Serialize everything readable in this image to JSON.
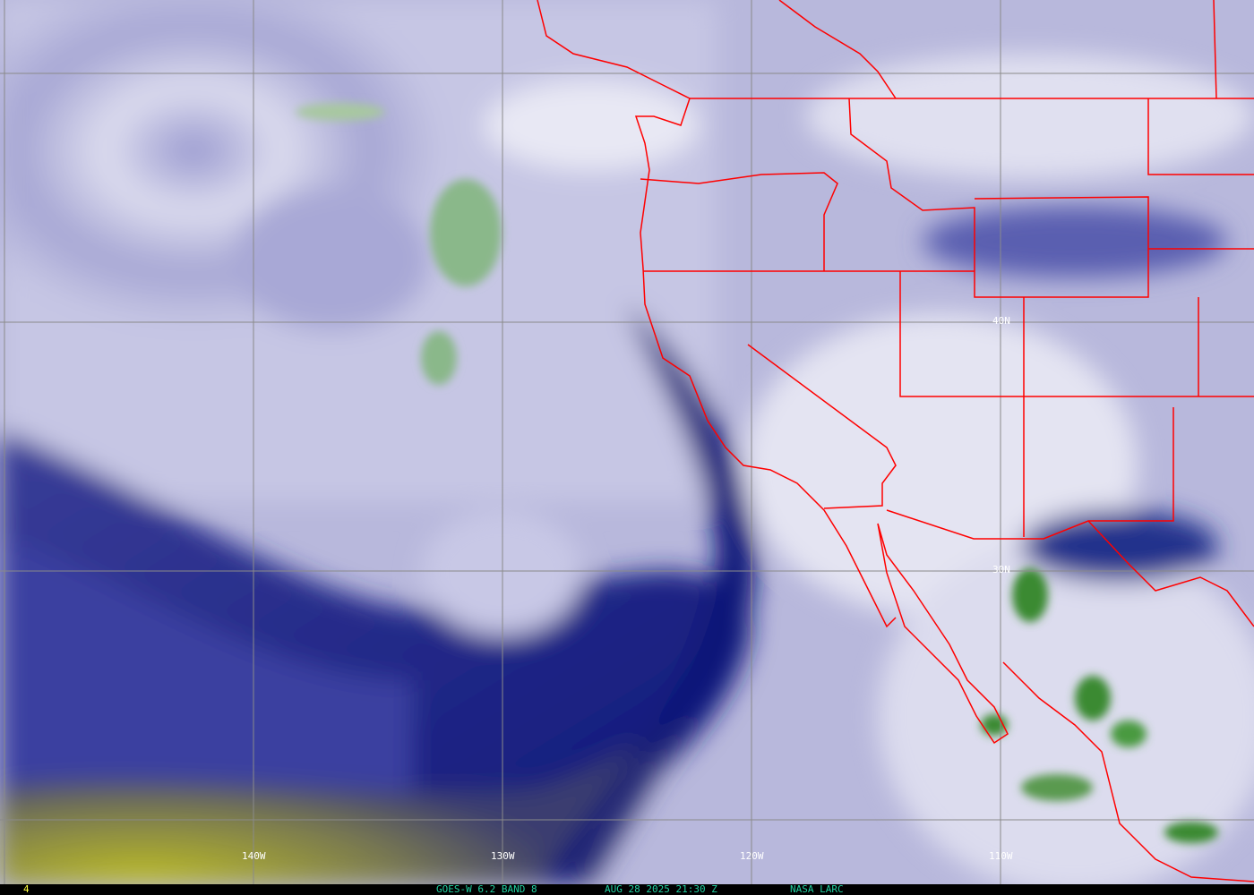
{
  "image": {
    "satellite": "GOES-W",
    "product_label": "GOES-W 6.2 BAND 8",
    "datetime_label": "AUG 28 2025 21:30 Z",
    "credit_label": "NASA LARC",
    "frame_number": "4"
  },
  "grid": {
    "longitude_labels": [
      "140W",
      "130W",
      "120W",
      "110W"
    ],
    "latitude_labels": [
      "40N",
      "30N"
    ],
    "line_color": "#8a8a8a"
  },
  "colors": {
    "boundary": "#ff0000",
    "dry_air": "#101a80",
    "moist_air": "#e8e8f4",
    "very_dry": "#b8b820",
    "cloud_tops": "#4a9a40",
    "footer_text": "#20d0a0",
    "frame_text": "#ffff40"
  }
}
